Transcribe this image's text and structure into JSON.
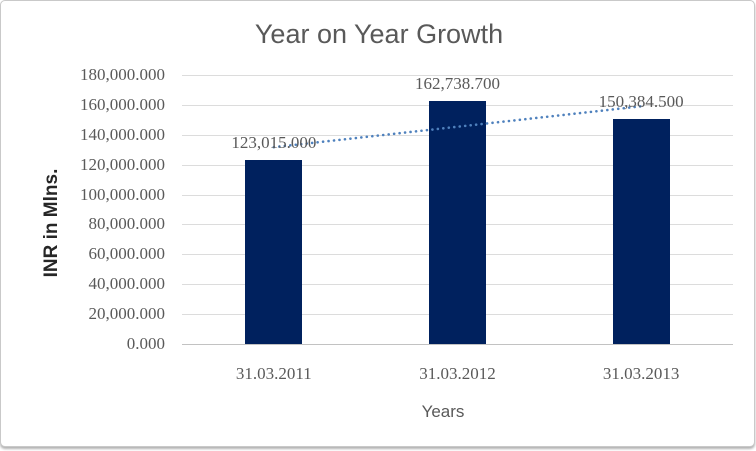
{
  "chart_data": {
    "type": "bar",
    "title": "Year on Year Growth",
    "xlabel": "Years",
    "ylabel": "INR in Mlns.",
    "categories": [
      "31.03.2011",
      "31.03.2012",
      "31.03.2013"
    ],
    "series": [
      {
        "name": "INR in Mlns.",
        "values": [
          123015.0,
          162738.7,
          150384.5
        ],
        "data_labels": [
          "123,015.000",
          "162,738.700",
          "150,384.500"
        ]
      }
    ],
    "ylim": [
      0,
      180000
    ],
    "ytick_step": 20000,
    "yticks": [
      {
        "value": 0,
        "label": "0.000"
      },
      {
        "value": 20000,
        "label": "20,000.000"
      },
      {
        "value": 40000,
        "label": "40,000.000"
      },
      {
        "value": 60000,
        "label": "60,000.000"
      },
      {
        "value": 80000,
        "label": "80,000.000"
      },
      {
        "value": 100000,
        "label": "100,000.000"
      },
      {
        "value": 120000,
        "label": "120,000.000"
      },
      {
        "value": 140000,
        "label": "140,000.000"
      },
      {
        "value": 160000,
        "label": "160,000.000"
      },
      {
        "value": 180000,
        "label": "180,000.000"
      }
    ],
    "grid": true,
    "legend": "none",
    "trendline": {
      "type": "linear",
      "style": "dotted",
      "series": "INR in Mlns."
    },
    "colors": {
      "bar": "#00215E",
      "trendline": "#4F81BD",
      "gridline": "#DCDCDC",
      "axis_line": "#C2C2C2",
      "tick_text": "#595959",
      "title_text": "#595959",
      "ylabel_text": "#262626"
    }
  }
}
